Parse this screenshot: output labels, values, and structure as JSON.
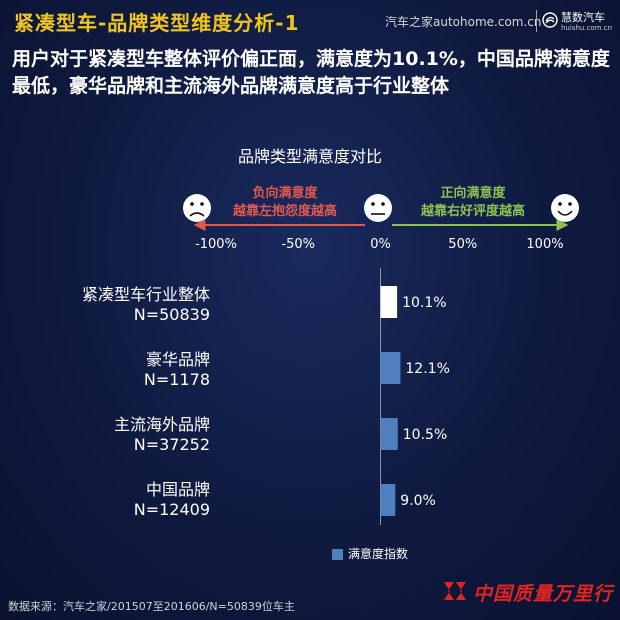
{
  "header": {
    "title": "紧凑型车-品牌类型维度分析-1",
    "brand_autohome": "汽车之家autohome.com.cn",
    "brand_huishu": "慧数汽车",
    "brand_huishu_url": "huishu.com.cn"
  },
  "headline": "用户对于紧凑型车整体评价偏正面，满意度为10.1%，中国品牌满意度最低，豪华品牌和主流海外品牌满意度高于行业整体",
  "scale": {
    "negative_label_1": "负向满意度",
    "negative_label_2": "越靠左抱怨度越高",
    "positive_label_1": "正向满意度",
    "positive_label_2": "越靠右好评度越高",
    "negative_color": "#e0584e",
    "positive_color": "#8cc152",
    "faces": [
      "sad-face-icon",
      "neutral-face-icon",
      "happy-face-icon"
    ]
  },
  "chart_data": {
    "type": "bar",
    "orientation": "horizontal",
    "title": "品牌类型满意度对比",
    "categories": [
      {
        "name": "紧凑型车行业整体",
        "n": "N=50839"
      },
      {
        "name": "豪华品牌",
        "n": "N=1178"
      },
      {
        "name": "主流海外品牌",
        "n": "N=37252"
      },
      {
        "name": "中国品牌",
        "n": "N=12409"
      }
    ],
    "series": [
      {
        "name": "满意度指数",
        "values": [
          10.1,
          12.1,
          10.5,
          9.0
        ],
        "value_labels": [
          "10.1%",
          "12.1%",
          "10.5%",
          "9.0%"
        ],
        "colors": [
          "#ffffff",
          "#4f7fbf",
          "#4f7fbf",
          "#4f7fbf"
        ]
      }
    ],
    "xlim": [
      -100,
      100
    ],
    "xticks": [
      -100,
      -50,
      0,
      50,
      100
    ],
    "xtick_labels": [
      "-100%",
      "-50%",
      "0%",
      "50%",
      "100%"
    ],
    "legend_position": "bottom-center"
  },
  "footer": {
    "source": "数据来源：汽车之家/201507至201606/N=50839位车主",
    "china_brand": "中国质量万里行"
  }
}
